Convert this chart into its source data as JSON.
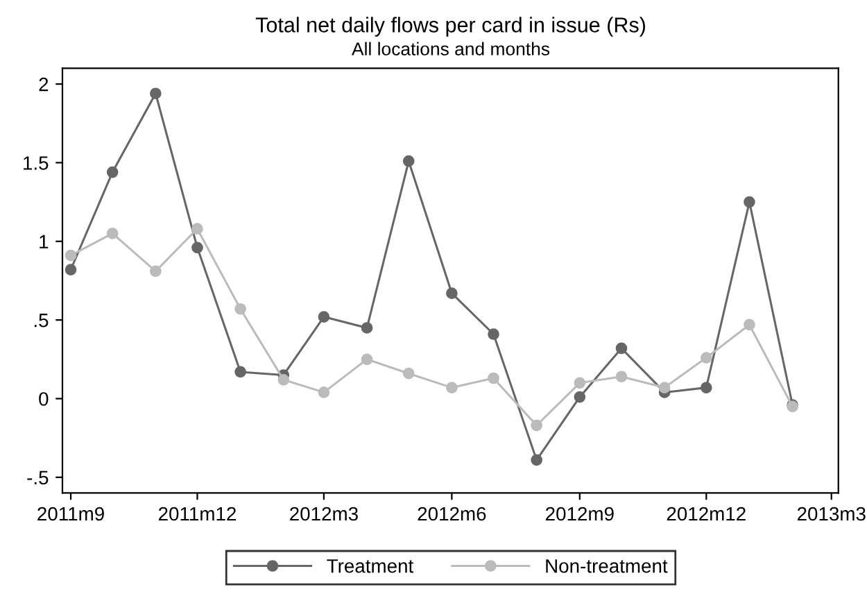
{
  "chart_data": {
    "type": "line",
    "title": "Total net daily flows per card in issue (Rs)",
    "subtitle": "All locations and months",
    "x": [
      "2011-09",
      "2011-10",
      "2011-11",
      "2011-12",
      "2012-01",
      "2012-02",
      "2012-03",
      "2012-04",
      "2012-05",
      "2012-06",
      "2012-07",
      "2012-08",
      "2012-09",
      "2012-10",
      "2012-11",
      "2012-12",
      "2013-01",
      "2013-02"
    ],
    "series": [
      {
        "name": "Treatment",
        "color": "#666666",
        "values": [
          0.82,
          1.44,
          1.94,
          0.96,
          0.17,
          0.15,
          0.52,
          0.45,
          1.51,
          0.67,
          0.41,
          -0.39,
          0.01,
          0.32,
          0.04,
          0.07,
          1.25,
          -0.04
        ]
      },
      {
        "name": "Non-treatment",
        "color": "#bbbbbb",
        "values": [
          0.91,
          1.05,
          0.81,
          1.08,
          0.57,
          0.12,
          0.04,
          0.25,
          0.16,
          0.07,
          0.13,
          -0.17,
          0.1,
          0.14,
          0.07,
          0.26,
          0.47,
          -0.05
        ]
      }
    ],
    "xlim": [
      "2011-08-26",
      "2013-03-06"
    ],
    "xticks": [
      {
        "value": "2011-09",
        "label": "2011m9"
      },
      {
        "value": "2011-12",
        "label": "2011m12"
      },
      {
        "value": "2012-03",
        "label": "2012m3"
      },
      {
        "value": "2012-06",
        "label": "2012m6"
      },
      {
        "value": "2012-09",
        "label": "2012m9"
      },
      {
        "value": "2012-12",
        "label": "2012m12"
      },
      {
        "value": "2013-03",
        "label": "2013m3"
      }
    ],
    "ylim": [
      -0.6,
      2.1
    ],
    "yticks": [
      {
        "value": -0.5,
        "label": "-.5"
      },
      0,
      {
        "value": 0.5,
        "label": ".5"
      },
      1,
      1.5,
      2
    ],
    "grid": false,
    "legend": "bottom",
    "marker": "circle",
    "line_style": "solid"
  }
}
